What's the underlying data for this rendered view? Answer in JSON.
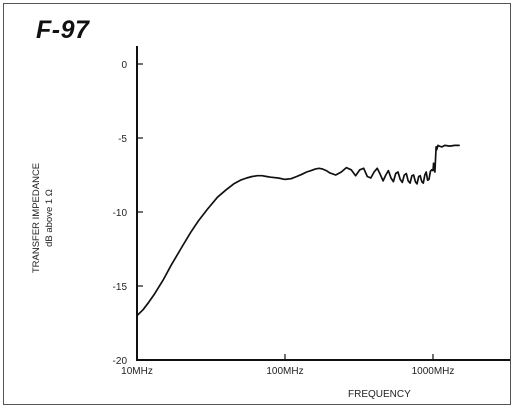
{
  "chart_data": {
    "type": "line",
    "title": "F-97",
    "ylabel_line1": "TRANSFER IMPEDANCE",
    "ylabel_line2": "dB above 1 Ω",
    "xlabel": "FREQUENCY",
    "xscale": "log",
    "xlim_mhz": [
      10,
      3000
    ],
    "ylim": [
      -20,
      0
    ],
    "xticks": [
      {
        "value": 10,
        "label": "10MHz"
      },
      {
        "value": 100,
        "label": "100MHz"
      },
      {
        "value": 1000,
        "label": "1000MHz"
      }
    ],
    "yticks": [
      {
        "value": 0,
        "label": "0"
      },
      {
        "value": -5,
        "label": "-5"
      },
      {
        "value": -10,
        "label": "-10"
      },
      {
        "value": -15,
        "label": "-15"
      },
      {
        "value": -20,
        "label": "-20"
      }
    ],
    "grid": false,
    "line_color": "#111111",
    "series": [
      {
        "x_mhz": [
          10,
          11,
          12,
          13,
          15,
          17,
          20,
          23,
          26,
          30,
          35,
          40,
          45,
          50,
          55,
          60,
          65,
          70,
          75,
          80,
          90,
          100,
          110,
          120,
          130,
          140,
          150,
          160,
          170,
          180,
          190,
          200,
          220,
          240,
          260,
          280,
          300,
          320,
          340,
          360,
          380,
          400,
          420,
          440,
          460,
          480,
          500,
          520,
          540,
          560,
          580,
          600,
          620,
          640,
          660,
          680,
          700,
          720,
          740,
          760,
          780,
          800,
          820,
          840,
          860,
          880,
          900,
          920,
          940,
          960,
          980,
          1000,
          1010,
          1030,
          1050,
          1060,
          1080,
          1100,
          1150,
          1200,
          1300,
          1400,
          1500
        ],
        "y": [
          -17.0,
          -16.6,
          -16.1,
          -15.6,
          -14.6,
          -13.6,
          -12.4,
          -11.4,
          -10.6,
          -9.8,
          -9.0,
          -8.5,
          -8.1,
          -7.85,
          -7.7,
          -7.6,
          -7.55,
          -7.55,
          -7.6,
          -7.65,
          -7.7,
          -7.8,
          -7.75,
          -7.6,
          -7.45,
          -7.3,
          -7.2,
          -7.1,
          -7.05,
          -7.1,
          -7.2,
          -7.35,
          -7.5,
          -7.3,
          -7.0,
          -7.15,
          -7.55,
          -7.15,
          -7.05,
          -7.6,
          -7.7,
          -7.3,
          -7.05,
          -7.45,
          -7.9,
          -7.5,
          -7.2,
          -7.7,
          -7.95,
          -7.4,
          -7.3,
          -7.8,
          -8.0,
          -7.5,
          -7.4,
          -7.9,
          -8.05,
          -7.55,
          -7.5,
          -7.95,
          -8.1,
          -7.6,
          -7.55,
          -7.95,
          -8.05,
          -7.5,
          -7.3,
          -7.85,
          -7.8,
          -7.25,
          -7.15,
          -7.2,
          -6.7,
          -7.3,
          -5.6,
          -5.8,
          -5.5,
          -5.55,
          -5.6,
          -5.5,
          -5.55,
          -5.5,
          -5.5
        ]
      }
    ]
  }
}
